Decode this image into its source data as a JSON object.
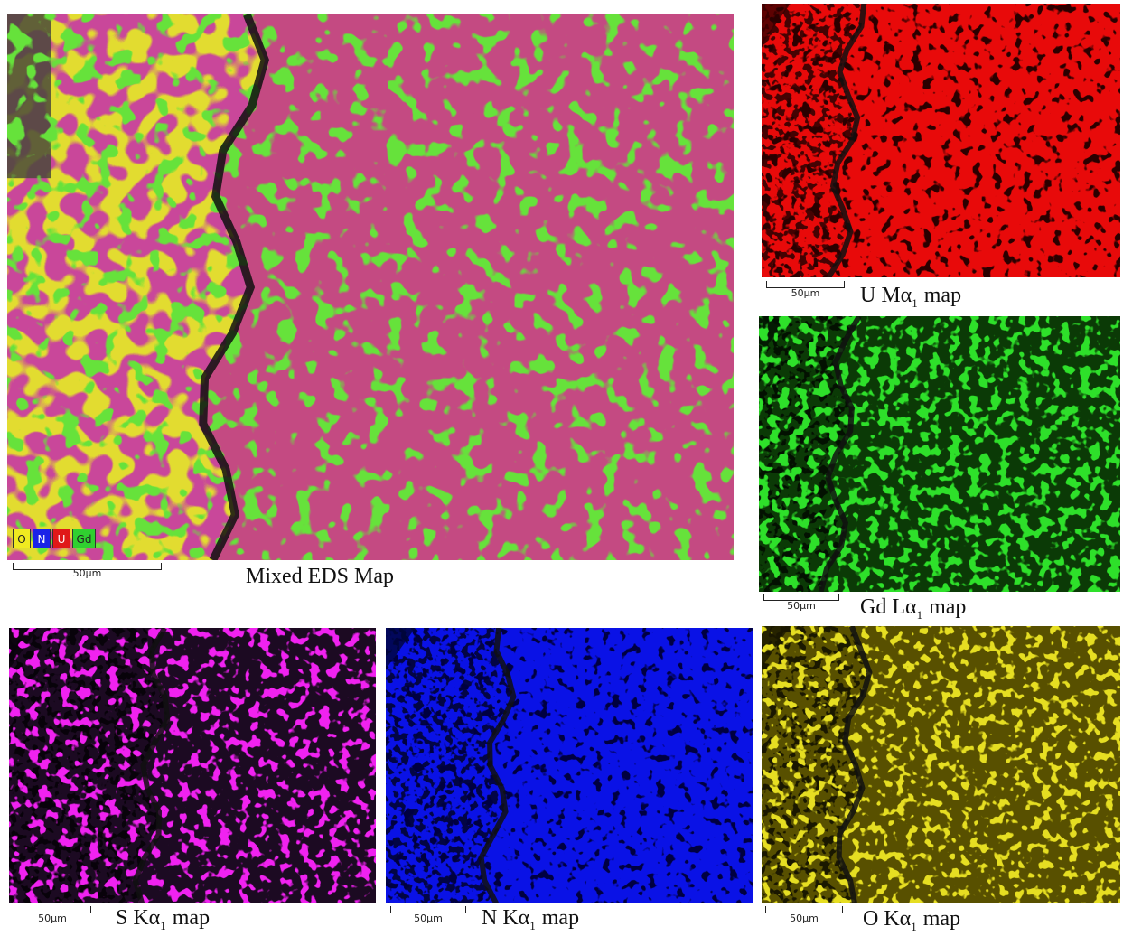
{
  "figure": {
    "panels": [
      {
        "caption": {
          "main": "Mixed EDS Map"
        },
        "scale": "50μm",
        "legend": [
          "O",
          "N",
          "U",
          "Gd"
        ]
      },
      {
        "caption": {
          "main": "U Mα",
          "sub": "1",
          "rest": "map"
        },
        "scale": "50μm"
      },
      {
        "caption": {
          "main": "Gd Lα",
          "sub": "1",
          "rest": "map"
        },
        "scale": "50μm"
      },
      {
        "caption": {
          "main": "S Kα",
          "sub": "1",
          "rest": "map"
        },
        "scale": "50μm"
      },
      {
        "caption": {
          "main": "N Kα",
          "sub": "1",
          "rest": "map"
        },
        "scale": "50μm"
      },
      {
        "caption": {
          "main": "O Kα",
          "sub": "1",
          "rest": "map"
        },
        "scale": "50μm"
      }
    ]
  }
}
